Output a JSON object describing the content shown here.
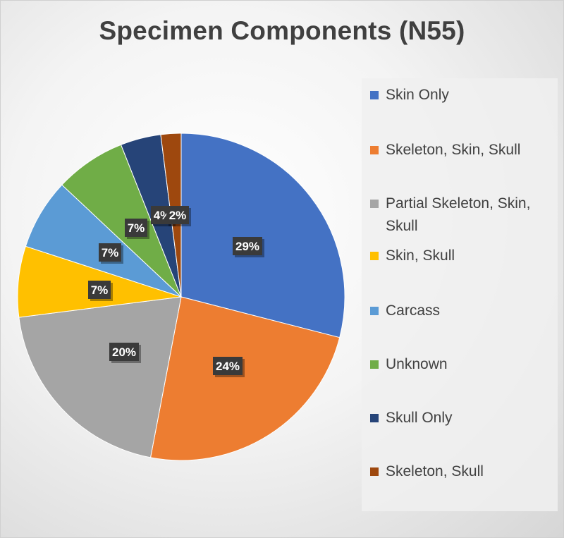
{
  "chart_data": {
    "type": "pie",
    "title": "Specimen Components (N55)",
    "categories": [
      "Skin Only",
      "Skeleton, Skin, Skull",
      "Partial Skeleton, Skin, Skull",
      "Skin, Skull",
      "Carcass",
      "Unknown",
      "Skull Only",
      "Skeleton, Skull"
    ],
    "values": [
      29,
      24,
      20,
      7,
      7,
      7,
      4,
      2
    ],
    "data_labels": [
      "29%",
      "24%",
      "20%",
      "7%",
      "7%",
      "7%",
      "4%",
      "2%"
    ],
    "colors": [
      "#4472C4",
      "#ED7D31",
      "#A5A5A5",
      "#FFC000",
      "#5B9BD5",
      "#70AD47",
      "#264478",
      "#9E480E"
    ],
    "legend_position": "right",
    "label_box_color": "#3a3a3a"
  }
}
